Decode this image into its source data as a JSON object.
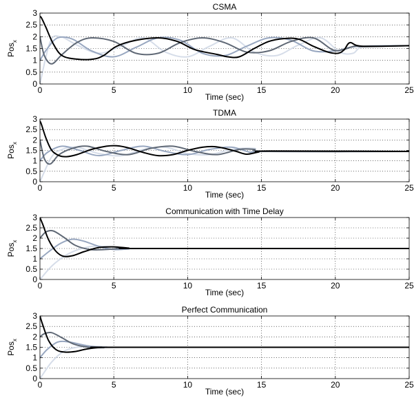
{
  "chart_data": [
    {
      "type": "line",
      "title": "CSMA",
      "xlabel": "Time (sec)",
      "ylabel": "Pos",
      "ylabel_sub": "x",
      "xlim": [
        0,
        25
      ],
      "ylim": [
        0,
        3
      ],
      "xticks": [
        "0",
        "5",
        "10",
        "15",
        "20",
        "25"
      ],
      "yticks": [
        "0",
        "0.5",
        "1",
        "1.5",
        "2",
        "2.5",
        "3"
      ],
      "grid": true,
      "series": [
        {
          "color": "#d6dde9",
          "x": [
            0,
            0.7,
            1.4,
            2.5,
            4,
            5.5,
            7,
            8.5,
            10,
            11.5,
            13,
            14.5,
            16,
            17.5,
            19,
            20.3,
            21.2,
            22,
            25
          ],
          "y": [
            0,
            1.8,
            2.0,
            1.65,
            1.3,
            1.6,
            1.95,
            1.35,
            1.15,
            1.6,
            1.95,
            1.35,
            1.2,
            1.65,
            1.95,
            1.35,
            1.3,
            1.6,
            1.62
          ]
        },
        {
          "color": "#98a7c0",
          "x": [
            0,
            0.5,
            1.2,
            2.2,
            3.5,
            5,
            6.5,
            8,
            9.5,
            11,
            12.5,
            14,
            15.5,
            17,
            18.5,
            20,
            21,
            22,
            25
          ],
          "y": [
            1.0,
            1.5,
            1.95,
            1.9,
            1.4,
            1.15,
            1.55,
            1.95,
            1.85,
            1.3,
            1.2,
            1.6,
            1.95,
            1.85,
            1.4,
            1.4,
            1.55,
            1.6,
            1.62
          ]
        },
        {
          "color": "#5f6875",
          "x": [
            0,
            0.3,
            0.8,
            1.5,
            2.5,
            3.5,
            5,
            6.5,
            8,
            9.5,
            11,
            12.5,
            14,
            15.5,
            17,
            18.5,
            19.8,
            20.5,
            21.3,
            22,
            25
          ],
          "y": [
            2.0,
            1.2,
            0.85,
            1.25,
            1.75,
            1.95,
            1.8,
            1.3,
            1.3,
            1.75,
            1.95,
            1.75,
            1.35,
            1.4,
            1.8,
            1.95,
            1.45,
            1.45,
            1.6,
            1.58,
            1.62
          ]
        },
        {
          "color": "#000000",
          "x": [
            0,
            0.1,
            0.4,
            0.9,
            1.5,
            2.5,
            3.6,
            4.3,
            5.2,
            6.5,
            8,
            9.3,
            10.5,
            12,
            12.7,
            13.5,
            14.5,
            15.5,
            16.5,
            17.5,
            18.5,
            19.5,
            20.2,
            20.6,
            21,
            21.8,
            25
          ],
          "y": [
            2.85,
            2.8,
            2.4,
            1.7,
            1.2,
            1.05,
            1.05,
            1.2,
            1.6,
            1.85,
            1.95,
            1.8,
            1.45,
            1.25,
            1.15,
            1.15,
            1.5,
            1.8,
            1.92,
            1.9,
            1.6,
            1.35,
            1.3,
            1.45,
            1.75,
            1.6,
            1.62
          ]
        }
      ]
    },
    {
      "type": "line",
      "title": "TDMA",
      "xlabel": "Time (sec)",
      "ylabel": "Pos",
      "ylabel_sub": "x",
      "xlim": [
        0,
        25
      ],
      "ylim": [
        0,
        3
      ],
      "xticks": [
        "0",
        "5",
        "10",
        "15",
        "20",
        "25"
      ],
      "yticks": [
        "0",
        "0.5",
        "1",
        "1.5",
        "2",
        "2.5",
        "3"
      ],
      "grid": true,
      "series": [
        {
          "color": "#d6dde9",
          "x": [
            0,
            0.8,
            1.5,
            2.5,
            4,
            5.5,
            7,
            8.5,
            10,
            11.5,
            13,
            14.5,
            15.5,
            25
          ],
          "y": [
            0,
            1.2,
            1.55,
            1.65,
            1.35,
            1.25,
            1.55,
            1.65,
            1.35,
            1.3,
            1.55,
            1.6,
            1.45,
            1.45
          ]
        },
        {
          "color": "#98a7c0",
          "x": [
            0,
            0.5,
            1.5,
            2.7,
            4,
            5.5,
            7,
            8.5,
            10,
            11.5,
            13,
            14.3,
            15.3,
            25
          ],
          "y": [
            1.0,
            1.4,
            1.7,
            1.5,
            1.25,
            1.5,
            1.7,
            1.45,
            1.3,
            1.55,
            1.65,
            1.4,
            1.45,
            1.45
          ]
        },
        {
          "color": "#5f6875",
          "x": [
            0,
            0.3,
            0.7,
            1.3,
            2.2,
            3.2,
            4.5,
            6,
            7.5,
            9,
            10.5,
            12,
            13.5,
            14.5,
            15.5,
            25
          ],
          "y": [
            2.0,
            1.1,
            0.85,
            1.3,
            1.6,
            1.7,
            1.45,
            1.3,
            1.6,
            1.7,
            1.45,
            1.3,
            1.55,
            1.55,
            1.45,
            1.45
          ]
        },
        {
          "color": "#000000",
          "x": [
            0,
            0.1,
            0.4,
            0.8,
            1.3,
            1.8,
            2.5,
            3.5,
            4.5,
            5.2,
            6,
            7,
            8,
            9,
            10,
            11,
            11.8,
            12.5,
            13.3,
            14,
            14.8,
            15.5,
            25
          ],
          "y": [
            2.9,
            2.75,
            2.1,
            1.5,
            1.25,
            1.2,
            1.3,
            1.55,
            1.7,
            1.72,
            1.62,
            1.4,
            1.25,
            1.3,
            1.5,
            1.65,
            1.68,
            1.6,
            1.45,
            1.32,
            1.42,
            1.47,
            1.45
          ]
        }
      ]
    },
    {
      "type": "line",
      "title": "Communication with Time Delay",
      "xlabel": "Time (sec)",
      "ylabel": "Pos",
      "ylabel_sub": "x",
      "xlim": [
        0,
        25
      ],
      "ylim": [
        0,
        3
      ],
      "xticks": [
        "0",
        "5",
        "10",
        "15",
        "20",
        "25"
      ],
      "yticks": [
        "0",
        "0.5",
        "1",
        "1.5",
        "2",
        "2.5",
        "3"
      ],
      "grid": true,
      "series": [
        {
          "color": "#d6dde9",
          "x": [
            0,
            0.8,
            1.7,
            2.6,
            3.5,
            4.5,
            5.5,
            7,
            25
          ],
          "y": [
            0,
            0.65,
            1.15,
            1.45,
            1.6,
            1.6,
            1.55,
            1.5,
            1.5
          ]
        },
        {
          "color": "#98a7c0",
          "x": [
            0,
            0.6,
            1.4,
            2.2,
            3,
            4,
            5,
            6,
            7,
            25
          ],
          "y": [
            1.0,
            1.35,
            1.75,
            1.95,
            1.85,
            1.6,
            1.45,
            1.48,
            1.5,
            1.5
          ]
        },
        {
          "color": "#5f6875",
          "x": [
            0,
            0.4,
            0.9,
            1.6,
            2.4,
            3.4,
            4.4,
            5.5,
            7,
            25
          ],
          "y": [
            2.0,
            2.3,
            2.35,
            2.05,
            1.65,
            1.45,
            1.45,
            1.5,
            1.5,
            1.5
          ]
        },
        {
          "color": "#000000",
          "x": [
            0,
            0.2,
            0.6,
            1.1,
            1.6,
            2.2,
            3,
            4,
            5,
            6,
            7,
            25
          ],
          "y": [
            3.0,
            2.65,
            1.9,
            1.35,
            1.12,
            1.15,
            1.35,
            1.55,
            1.58,
            1.52,
            1.5,
            1.5
          ]
        }
      ]
    },
    {
      "type": "line",
      "title": "Perfect Communication",
      "xlabel": "Time (sec)",
      "ylabel": "Pos",
      "ylabel_sub": "x",
      "xlim": [
        0,
        25
      ],
      "ylim": [
        0,
        3
      ],
      "xticks": [
        "0",
        "5",
        "10",
        "15",
        "20",
        "25"
      ],
      "yticks": [
        "0",
        "0.5",
        "1",
        "1.5",
        "2",
        "2.5",
        "3"
      ],
      "grid": true,
      "series": [
        {
          "color": "#d6dde9",
          "x": [
            0,
            0.8,
            1.6,
            2.5,
            3.5,
            4.5,
            5.5,
            25
          ],
          "y": [
            0,
            0.8,
            1.3,
            1.5,
            1.55,
            1.52,
            1.5,
            1.5
          ]
        },
        {
          "color": "#98a7c0",
          "x": [
            0,
            0.5,
            1.2,
            2,
            3,
            4,
            5,
            25
          ],
          "y": [
            1.0,
            1.4,
            1.75,
            1.75,
            1.6,
            1.5,
            1.5,
            1.5
          ]
        },
        {
          "color": "#5f6875",
          "x": [
            0,
            0.3,
            0.8,
            1.5,
            2.3,
            3.3,
            4.3,
            5.5,
            25
          ],
          "y": [
            2.0,
            2.15,
            2.2,
            1.95,
            1.65,
            1.5,
            1.48,
            1.5,
            1.5
          ]
        },
        {
          "color": "#000000",
          "x": [
            0,
            0.2,
            0.6,
            1.1,
            1.7,
            2.4,
            3.2,
            4.2,
            5.2,
            25
          ],
          "y": [
            3.0,
            2.55,
            1.8,
            1.38,
            1.27,
            1.3,
            1.42,
            1.5,
            1.5,
            1.5
          ]
        }
      ]
    }
  ]
}
